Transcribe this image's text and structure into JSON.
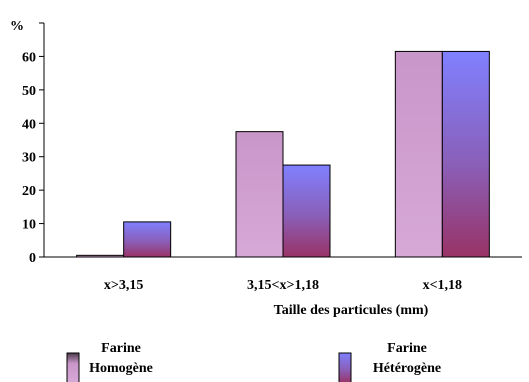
{
  "chart_data": {
    "type": "bar",
    "ylabel": "%",
    "xlabel": "Taille des particules (mm)",
    "categories": [
      "x>3,15",
      "3,15<x>1,18",
      "x<1,18"
    ],
    "series": [
      {
        "name_line1": "Farine",
        "name_line2": "Homogène",
        "values": [
          0.5,
          37.5,
          61.5
        ]
      },
      {
        "name_line1": "Farine",
        "name_line2": "Hétérogène",
        "values": [
          10.5,
          27.5,
          61.5
        ]
      }
    ],
    "ylim": [
      0,
      70
    ],
    "yticks": [
      0,
      10,
      20,
      30,
      40,
      50,
      60,
      70
    ],
    "ytick_labels": [
      "0",
      "10",
      "20",
      "30",
      "40",
      "50",
      "60",
      ""
    ],
    "grid": false,
    "legend": "bottom",
    "colors": {
      "homogene_top": "#c996c9",
      "homogene_bottom": "#d7a9d7",
      "heterogene_top": "#8080ff",
      "heterogene_bottom": "#993366"
    }
  }
}
